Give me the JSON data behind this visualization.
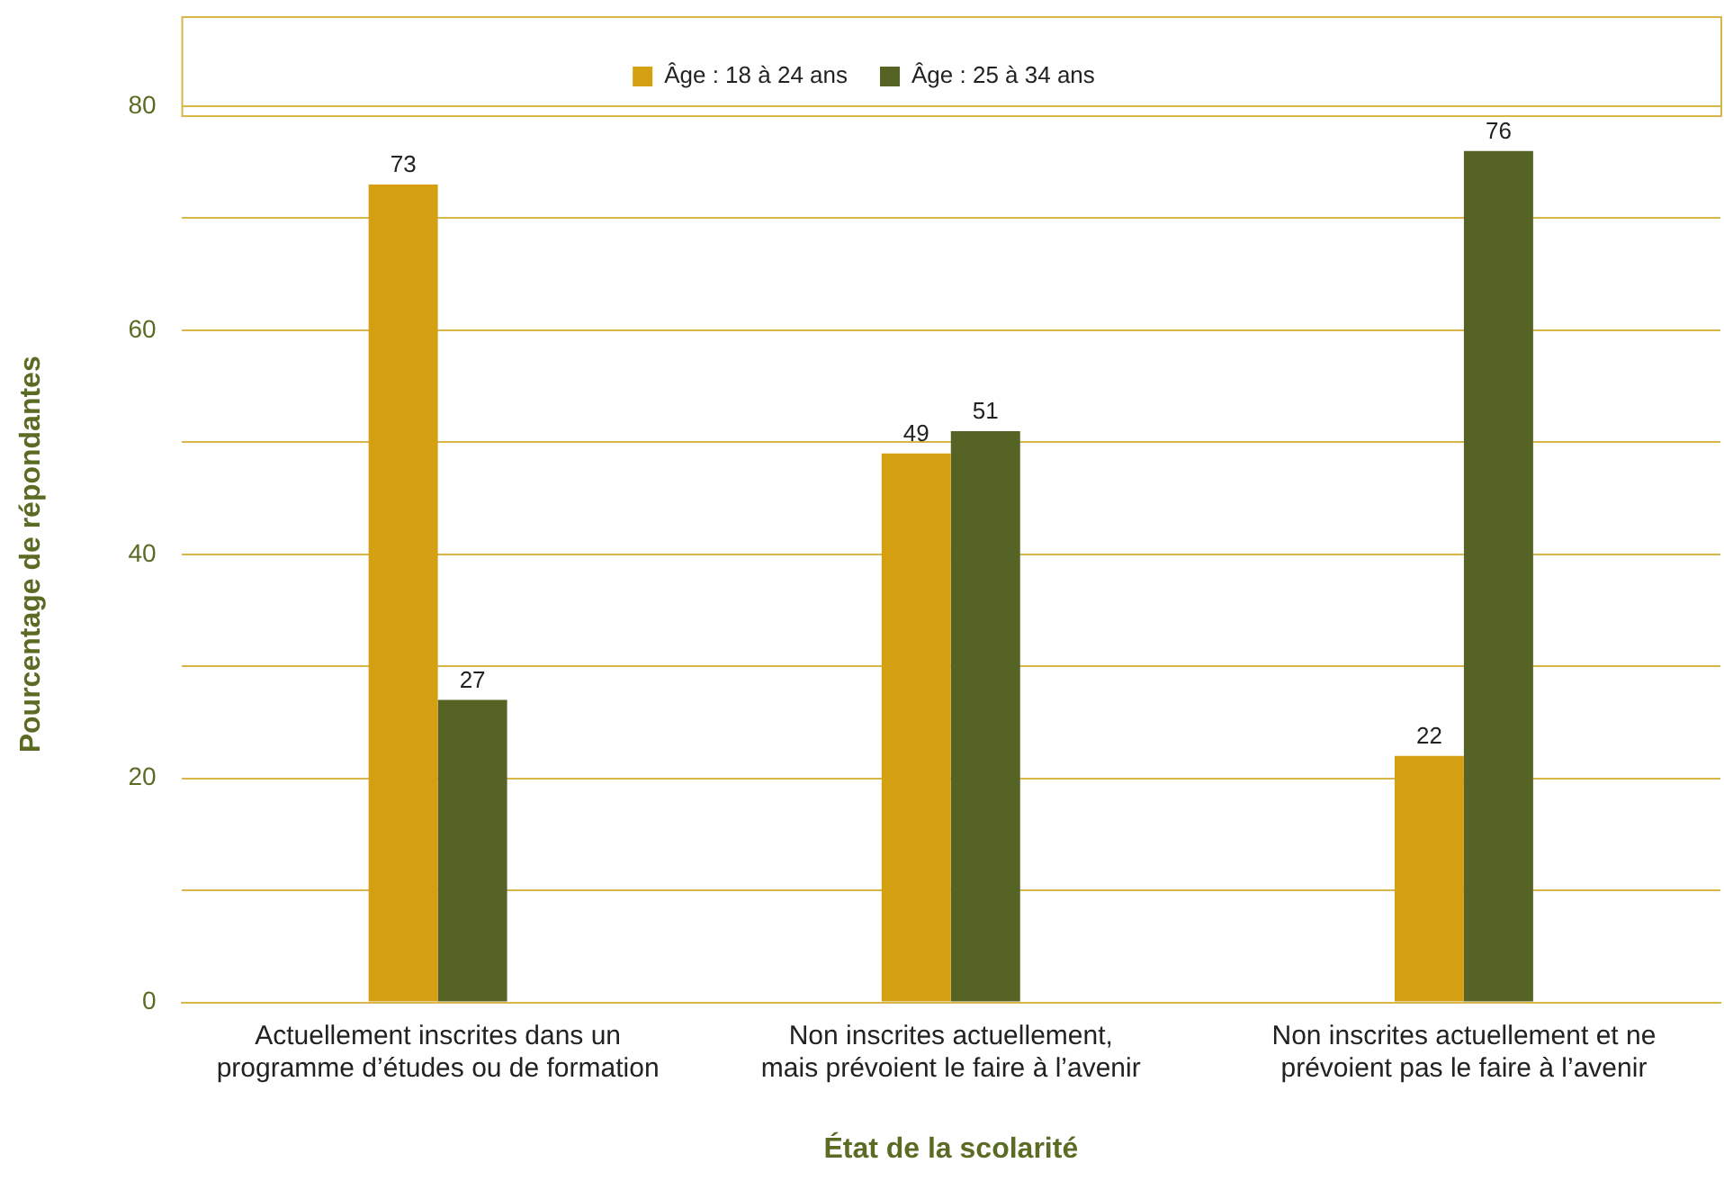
{
  "chart_data": {
    "type": "bar",
    "xlabel": "État de la scolarité",
    "ylabel": "Pourcentage de répondantes",
    "categories": [
      "Actuellement inscrites dans un\nprogramme d’études ou de formation",
      "Non inscrites actuellement,\nmais prévoient le faire à l’avenir",
      "Non inscrites actuellement et ne\nprévoient pas le faire à l’avenir"
    ],
    "series": [
      {
        "name": "Âge : 18 à 24 ans",
        "color": "#d4a012",
        "values": [
          73,
          49,
          22
        ]
      },
      {
        "name": "Âge : 25 à 34 ans",
        "color": "#556424",
        "values": [
          27,
          51,
          76
        ]
      }
    ],
    "ylim": [
      0,
      80
    ],
    "yticks": [
      0,
      {
        "value": 10,
        "label": null
      },
      20,
      {
        "value": 30,
        "label": null
      },
      40,
      {
        "value": 50,
        "label": null
      },
      60,
      {
        "value": 70,
        "label": null
      },
      80
    ],
    "grid": "y",
    "legend": "top",
    "data_labels": true
  }
}
